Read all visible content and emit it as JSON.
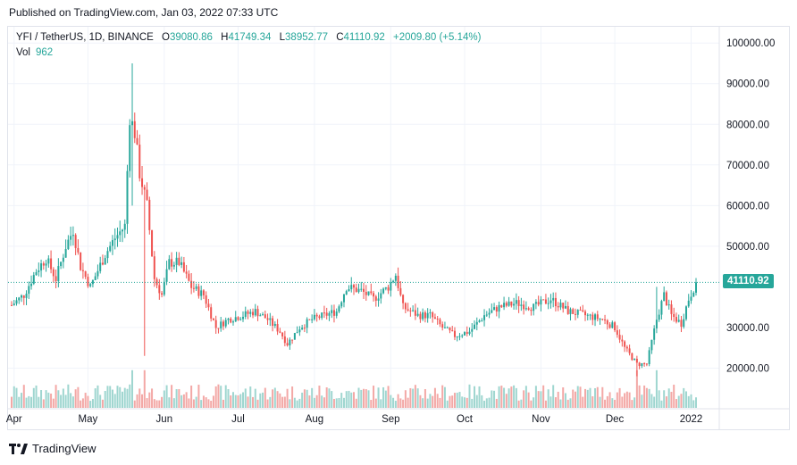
{
  "header": {
    "published": "Published on TradingView.com, Jan 03, 2022 07:33 UTC"
  },
  "legend": {
    "symbol": "YFI / TetherUS, 1D, BINANCE",
    "open_label": "O",
    "open": "39080.86",
    "high_label": "H",
    "high": "41749.34",
    "low_label": "L",
    "low": "38952.77",
    "close_label": "C",
    "close": "41110.92",
    "change": "+2009.80 (+5.14%)",
    "vol_label": "Vol",
    "vol": "962"
  },
  "last_price_tag": "41110.92",
  "footer": {
    "brand": "TradingView"
  },
  "colors": {
    "up": "#26a69a",
    "down": "#ef5350",
    "up_vol": "#9fd6d0",
    "down_vol": "#f3a8a6",
    "grid": "#f0f3fa",
    "axis_text": "#131722"
  },
  "chart_data": {
    "type": "candlestick",
    "y_axis": {
      "ticks": [
        "100000.00",
        "90000.00",
        "80000.00",
        "70000.00",
        "60000.00",
        "50000.00",
        "30000.00",
        "20000.00"
      ],
      "tick_values": [
        100000,
        90000,
        80000,
        70000,
        60000,
        50000,
        30000,
        20000
      ],
      "range": [
        10000,
        104000
      ],
      "position": "right"
    },
    "x_axis": {
      "labels": [
        "Apr",
        "May",
        "Jun",
        "Jul",
        "Aug",
        "Sep",
        "Oct",
        "Nov",
        "Dec",
        "2022"
      ],
      "label_dates": [
        "2021-04-01",
        "2021-05-01",
        "2021-06-01",
        "2021-07-01",
        "2021-08-01",
        "2021-09-01",
        "2021-10-01",
        "2021-11-01",
        "2021-12-01",
        "2022-01-01"
      ],
      "range": [
        "2021-03-31",
        "2022-01-03"
      ]
    },
    "price_anchors": [
      [
        "2021-03-31",
        35500
      ],
      [
        "2021-04-05",
        38000
      ],
      [
        "2021-04-10",
        44000
      ],
      [
        "2021-04-14",
        47000
      ],
      [
        "2021-04-18",
        42000
      ],
      [
        "2021-04-22",
        50000
      ],
      [
        "2021-04-25",
        54000
      ],
      [
        "2021-04-28",
        45000
      ],
      [
        "2021-05-02",
        40000
      ],
      [
        "2021-05-05",
        44000
      ],
      [
        "2021-05-08",
        48000
      ],
      [
        "2021-05-12",
        52000
      ],
      [
        "2021-05-16",
        55000
      ],
      [
        "2021-05-18",
        82000
      ],
      [
        "2021-05-20",
        78000
      ],
      [
        "2021-05-22",
        68000
      ],
      [
        "2021-05-25",
        60000
      ],
      [
        "2021-05-28",
        42000
      ],
      [
        "2021-05-31",
        38000
      ],
      [
        "2021-06-03",
        46000
      ],
      [
        "2021-06-07",
        46000
      ],
      [
        "2021-06-12",
        40000
      ],
      [
        "2021-06-17",
        38000
      ],
      [
        "2021-06-22",
        30000
      ],
      [
        "2021-06-27",
        32000
      ],
      [
        "2021-07-03",
        33000
      ],
      [
        "2021-07-08",
        34000
      ],
      [
        "2021-07-13",
        32000
      ],
      [
        "2021-07-18",
        29000
      ],
      [
        "2021-07-21",
        26000
      ],
      [
        "2021-07-26",
        30000
      ],
      [
        "2021-07-31",
        32000
      ],
      [
        "2021-08-05",
        33000
      ],
      [
        "2021-08-10",
        34000
      ],
      [
        "2021-08-14",
        40000
      ],
      [
        "2021-08-20",
        39000
      ],
      [
        "2021-08-25",
        37000
      ],
      [
        "2021-08-31",
        40000
      ],
      [
        "2021-09-03",
        43000
      ],
      [
        "2021-09-06",
        35000
      ],
      [
        "2021-09-12",
        33000
      ],
      [
        "2021-09-17",
        33000
      ],
      [
        "2021-09-22",
        30000
      ],
      [
        "2021-09-27",
        28000
      ],
      [
        "2021-10-03",
        29000
      ],
      [
        "2021-10-09",
        33000
      ],
      [
        "2021-10-15",
        35000
      ],
      [
        "2021-10-22",
        36000
      ],
      [
        "2021-10-29",
        35000
      ],
      [
        "2021-11-05",
        37000
      ],
      [
        "2021-11-12",
        34000
      ],
      [
        "2021-11-19",
        33000
      ],
      [
        "2021-11-26",
        32000
      ],
      [
        "2021-12-01",
        30000
      ],
      [
        "2021-12-05",
        25000
      ],
      [
        "2021-12-10",
        21000
      ],
      [
        "2021-12-14",
        21000
      ],
      [
        "2021-12-18",
        32000
      ],
      [
        "2021-12-21",
        38000
      ],
      [
        "2021-12-24",
        33000
      ],
      [
        "2021-12-28",
        31000
      ],
      [
        "2021-12-31",
        37000
      ],
      [
        "2022-01-03",
        41111
      ]
    ],
    "volume_note": "",
    "last_close": 41110.92,
    "grid": true,
    "legend_position": "top-left"
  }
}
